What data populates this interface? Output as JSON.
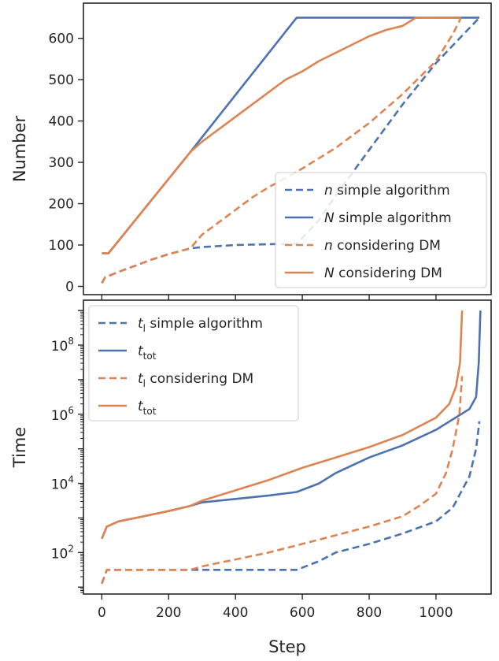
{
  "chart_data": [
    {
      "type": "line",
      "xlabel": "",
      "ylabel": "Number",
      "xlim": [
        -55,
        1165
      ],
      "ylim": [
        -20,
        685
      ],
      "x_ticks": [
        0,
        200,
        400,
        600,
        800,
        1000
      ],
      "x_tick_labels": [
        "",
        "",
        "",
        "",
        "",
        ""
      ],
      "y_ticks": [
        0,
        100,
        200,
        300,
        400,
        500,
        600
      ],
      "y_tick_labels": [
        "0",
        "100",
        "200",
        "300",
        "400",
        "500",
        "600"
      ],
      "legend_position": "lower-right",
      "series": [
        {
          "legend": {
            "var": "n",
            "text": " simple algorithm"
          },
          "color": "#4c72b0",
          "dash": "dashed",
          "x": [
            0,
            10,
            50,
            100,
            150,
            200,
            265,
            300,
            400,
            500,
            583,
            650,
            700,
            800,
            900,
            1000,
            1130
          ],
          "y": [
            8,
            22,
            35,
            50,
            65,
            78,
            92,
            95,
            100,
            102,
            103,
            160,
            220,
            330,
            440,
            540,
            650
          ]
        },
        {
          "legend": {
            "var": "N",
            "text": " simple algorithm"
          },
          "color": "#4c72b0",
          "dash": "solid",
          "x": [
            0,
            20,
            265,
            583,
            1130
          ],
          "y": [
            80,
            80,
            325,
            650,
            650
          ]
        },
        {
          "legend": {
            "var": "n",
            "text": " considering DM"
          },
          "color": "#dd8452",
          "dash": "dashed",
          "x": [
            0,
            10,
            50,
            100,
            150,
            200,
            265,
            300,
            350,
            400,
            450,
            500,
            550,
            600,
            650,
            700,
            750,
            800,
            850,
            900,
            950,
            1000,
            1050,
            1075
          ],
          "y": [
            8,
            22,
            35,
            50,
            65,
            78,
            92,
            125,
            155,
            185,
            215,
            240,
            262,
            285,
            310,
            335,
            365,
            395,
            430,
            465,
            505,
            545,
            610,
            650
          ]
        },
        {
          "legend": {
            "var": "N",
            "text": " considering DM"
          },
          "color": "#dd8452",
          "dash": "solid",
          "x": [
            0,
            20,
            265,
            300,
            350,
            400,
            450,
            500,
            550,
            600,
            650,
            700,
            750,
            800,
            850,
            900,
            940,
            1075
          ],
          "y": [
            80,
            80,
            325,
            350,
            380,
            410,
            440,
            470,
            500,
            520,
            545,
            565,
            585,
            605,
            620,
            630,
            650,
            650
          ]
        }
      ]
    },
    {
      "type": "line",
      "xlabel": "Step",
      "ylabel": "Time",
      "yscale": "log",
      "xlim": [
        -55,
        1165
      ],
      "ylim_log10": [
        0.8,
        9.3
      ],
      "x_ticks": [
        0,
        200,
        400,
        600,
        800,
        1000
      ],
      "x_tick_labels": [
        "0",
        "200",
        "400",
        "600",
        "800",
        "1000"
      ],
      "y_ticks_log10": [
        2,
        4,
        6,
        8
      ],
      "y_tick_labels": [
        {
          "base": "10",
          "exp": "2"
        },
        {
          "base": "10",
          "exp": "4"
        },
        {
          "base": "10",
          "exp": "6"
        },
        {
          "base": "10",
          "exp": "8"
        }
      ],
      "legend_position": "upper-left",
      "series": [
        {
          "legend": {
            "var": "t",
            "sub": "l",
            "text": " simple algorithm"
          },
          "color": "#4c72b0",
          "dash": "dashed",
          "x": [
            0,
            15,
            100,
            265,
            583,
            650,
            700,
            800,
            900,
            1000,
            1050,
            1100,
            1120,
            1130
          ],
          "y_log10": [
            1.1,
            1.5,
            1.5,
            1.5,
            1.5,
            1.75,
            2.0,
            2.25,
            2.55,
            2.9,
            3.3,
            4.2,
            5.0,
            5.8
          ]
        },
        {
          "legend": {
            "var": "t",
            "sub": "tot",
            "text": ""
          },
          "color": "#4c72b0",
          "dash": "solid",
          "x": [
            0,
            15,
            50,
            100,
            150,
            200,
            265,
            300,
            400,
            500,
            583,
            650,
            700,
            800,
            900,
            1000,
            1050,
            1100,
            1120,
            1128,
            1133
          ],
          "y_log10": [
            2.4,
            2.75,
            2.9,
            3.0,
            3.1,
            3.2,
            3.35,
            3.45,
            3.55,
            3.65,
            3.75,
            4.0,
            4.3,
            4.75,
            5.1,
            5.55,
            5.85,
            6.15,
            6.5,
            7.5,
            9.0
          ]
        },
        {
          "legend": {
            "var": "t",
            "sub": "l",
            "text": " considering DM"
          },
          "color": "#dd8452",
          "dash": "dashed",
          "x": [
            0,
            15,
            100,
            265,
            300,
            400,
            500,
            600,
            700,
            800,
            900,
            950,
            1000,
            1030,
            1050,
            1070,
            1078
          ],
          "y_log10": [
            1.1,
            1.5,
            1.5,
            1.5,
            1.6,
            1.8,
            2.0,
            2.25,
            2.5,
            2.75,
            3.05,
            3.35,
            3.7,
            4.3,
            5.0,
            6.0,
            7.1
          ]
        },
        {
          "legend": {
            "var": "t",
            "sub": "tot",
            "text": ""
          },
          "color": "#dd8452",
          "dash": "solid",
          "x": [
            0,
            15,
            50,
            100,
            150,
            200,
            265,
            300,
            400,
            500,
            600,
            700,
            800,
            900,
            1000,
            1040,
            1060,
            1072,
            1078
          ],
          "y_log10": [
            2.4,
            2.75,
            2.9,
            3.0,
            3.1,
            3.2,
            3.35,
            3.5,
            3.8,
            4.1,
            4.45,
            4.75,
            5.05,
            5.4,
            5.9,
            6.3,
            6.8,
            7.5,
            9.0
          ]
        }
      ]
    }
  ]
}
